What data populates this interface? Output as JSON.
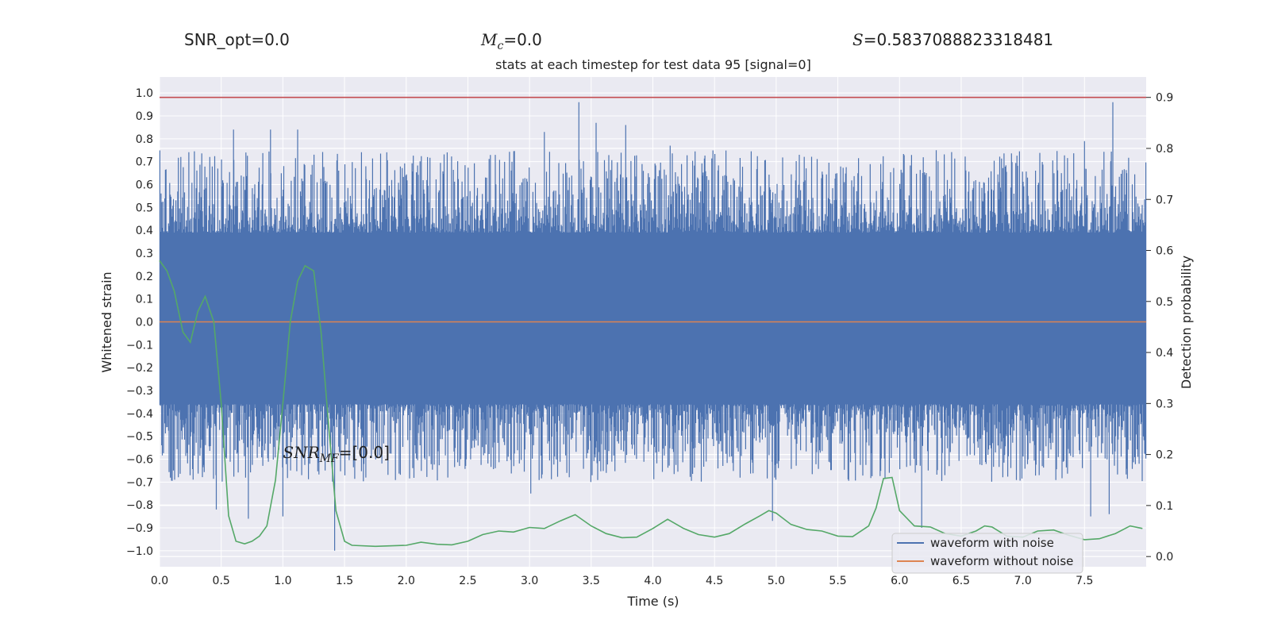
{
  "header": {
    "snr_opt": "SNR_opt=0.0",
    "mc_symbol": "M",
    "mc_sub": "c",
    "mc_value": "=0.0",
    "s_symbol": "S",
    "s_value": "=0.5837088823318481"
  },
  "chart_data": {
    "type": "line",
    "title": "stats at each timestep for test data 95 [signal=0]",
    "xlabel": "Time (s)",
    "ylabel_left": "Whitened strain",
    "ylabel_right": "Detection probability",
    "xlim": [
      0.0,
      8.0
    ],
    "ylim_left": [
      -1.07,
      1.07
    ],
    "ylim_right": [
      -0.02,
      0.94
    ],
    "x_ticks": [
      0.0,
      0.5,
      1.0,
      1.5,
      2.0,
      2.5,
      3.0,
      3.5,
      4.0,
      4.5,
      5.0,
      5.5,
      6.0,
      6.5,
      7.0,
      7.5
    ],
    "y_left_ticks": [
      1.0,
      0.9,
      0.8,
      0.7,
      0.6,
      0.5,
      0.4,
      0.3,
      0.2,
      0.1,
      0.0,
      -0.1,
      -0.2,
      -0.3,
      -0.4,
      -0.5,
      -0.6,
      -0.7,
      -0.8,
      -0.9,
      -1.0
    ],
    "y_right_ticks": [
      0.9,
      0.8,
      0.7,
      0.6,
      0.5,
      0.4,
      0.3,
      0.2,
      0.1,
      0.0
    ],
    "grid": true,
    "background": "#EAEAF2",
    "legend_position": "lower-right",
    "legend": [
      {
        "label": "waveform with noise",
        "color": "#4C72B0"
      },
      {
        "label": "waveform without noise",
        "color": "#DD8452"
      }
    ],
    "annotation": {
      "prefix": "SNR",
      "sub": "MF",
      "value": "=[0.0]",
      "x": 1.0,
      "y": -0.57
    },
    "series": [
      {
        "name": "waveform with noise",
        "axis": "left",
        "color": "#4C72B0",
        "style": "noise_band",
        "duration": 8.0,
        "band": [
          -0.36,
          0.39
        ],
        "peaks": [
          {
            "x": 0.6,
            "y": 0.84
          },
          {
            "x": 0.7,
            "y": 0.74
          },
          {
            "x": 0.9,
            "y": 0.84
          },
          {
            "x": 1.12,
            "y": 0.84
          },
          {
            "x": 3.12,
            "y": 0.83
          },
          {
            "x": 3.4,
            "y": 0.96
          },
          {
            "x": 3.54,
            "y": 0.87
          },
          {
            "x": 3.78,
            "y": 0.86
          },
          {
            "x": 4.14,
            "y": 0.77
          },
          {
            "x": 7.5,
            "y": 0.79
          },
          {
            "x": 7.73,
            "y": 0.96
          },
          {
            "x": 0.46,
            "y": -0.82
          },
          {
            "x": 0.72,
            "y": -0.86
          },
          {
            "x": 1.0,
            "y": -0.85
          },
          {
            "x": 1.42,
            "y": -1.0
          },
          {
            "x": 3.01,
            "y": -0.75
          },
          {
            "x": 4.97,
            "y": -0.87
          },
          {
            "x": 6.18,
            "y": -0.9
          },
          {
            "x": 7.55,
            "y": -0.85
          },
          {
            "x": 7.7,
            "y": -0.84
          }
        ]
      },
      {
        "name": "waveform without noise",
        "axis": "left",
        "color": "#DD8452",
        "x": [
          0.0,
          8.0
        ],
        "y": [
          0.0,
          0.0
        ]
      },
      {
        "axis": "right",
        "color": "#55A868",
        "x": [
          0.0,
          0.06,
          0.12,
          0.19,
          0.25,
          0.31,
          0.37,
          0.44,
          0.5,
          0.56,
          0.62,
          0.69,
          0.75,
          0.81,
          0.87,
          0.94,
          1.0,
          1.06,
          1.12,
          1.18,
          1.25,
          1.31,
          1.37,
          1.43,
          1.5,
          1.56,
          1.75,
          2.0,
          2.12,
          2.25,
          2.37,
          2.5,
          2.62,
          2.75,
          2.87,
          3.0,
          3.12,
          3.25,
          3.37,
          3.5,
          3.62,
          3.75,
          3.87,
          4.0,
          4.12,
          4.25,
          4.37,
          4.5,
          4.62,
          4.75,
          4.87,
          4.94,
          5.0,
          5.12,
          5.25,
          5.37,
          5.5,
          5.62,
          5.75,
          5.81,
          5.87,
          5.94,
          6.0,
          6.12,
          6.25,
          6.37,
          6.5,
          6.62,
          6.69,
          6.75,
          6.87,
          7.0,
          7.12,
          7.25,
          7.37,
          7.5,
          7.62,
          7.75,
          7.87,
          7.97
        ],
        "y": [
          0.58,
          0.56,
          0.52,
          0.44,
          0.42,
          0.48,
          0.51,
          0.46,
          0.3,
          0.08,
          0.03,
          0.025,
          0.03,
          0.04,
          0.06,
          0.15,
          0.3,
          0.46,
          0.54,
          0.57,
          0.56,
          0.44,
          0.26,
          0.09,
          0.03,
          0.022,
          0.02,
          0.022,
          0.028,
          0.024,
          0.023,
          0.03,
          0.043,
          0.05,
          0.048,
          0.057,
          0.055,
          0.07,
          0.082,
          0.06,
          0.045,
          0.037,
          0.038,
          0.055,
          0.073,
          0.055,
          0.043,
          0.038,
          0.045,
          0.064,
          0.08,
          0.09,
          0.085,
          0.063,
          0.053,
          0.05,
          0.04,
          0.039,
          0.06,
          0.095,
          0.153,
          0.155,
          0.09,
          0.06,
          0.058,
          0.045,
          0.04,
          0.05,
          0.06,
          0.058,
          0.04,
          0.038,
          0.05,
          0.052,
          0.042,
          0.033,
          0.035,
          0.045,
          0.06,
          0.055
        ]
      },
      {
        "name": "threshold",
        "axis": "right",
        "color": "#C44E52",
        "x": [
          0.0,
          8.0
        ],
        "y": [
          0.9,
          0.9
        ]
      }
    ]
  }
}
